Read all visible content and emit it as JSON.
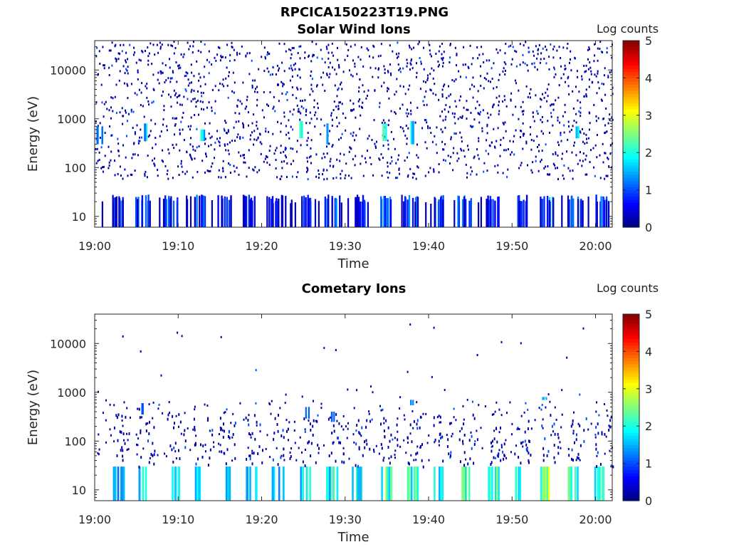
{
  "figure": {
    "title": "RPCICA150223T19.PNG"
  },
  "chart_data": [
    {
      "type": "heatmap",
      "title": "Solar Wind Ions",
      "xlabel": "Time",
      "ylabel": "Energy (eV)",
      "yscale": "log",
      "ylim": [
        6,
        40000
      ],
      "xlim": [
        "19:00",
        "20:02"
      ],
      "x_tick_labels": [
        "19:00",
        "19:10",
        "19:20",
        "19:30",
        "19:40",
        "19:50",
        "20:00"
      ],
      "y_tick_labels": [
        "10",
        "100",
        "1000",
        "10000"
      ],
      "colorbar": {
        "label": "Log counts",
        "range": [
          0,
          5
        ],
        "ticks": [
          "0",
          "1",
          "2",
          "3",
          "4",
          "5"
        ],
        "colormap": "jet"
      },
      "bursts": [
        {
          "t": 0.5,
          "emin": 300,
          "emax": 700,
          "v": 1.6
        },
        {
          "t": 5.8,
          "emin": 350,
          "emax": 800,
          "v": 1.8
        },
        {
          "t": 12.8,
          "emin": 350,
          "emax": 600,
          "v": 2.0
        },
        {
          "t": 24.6,
          "emin": 400,
          "emax": 900,
          "v": 2.1
        },
        {
          "t": 28.1,
          "emin": 300,
          "emax": 800,
          "v": 1.3
        },
        {
          "t": 34.8,
          "emin": 350,
          "emax": 800,
          "v": 2.2
        },
        {
          "t": 38.1,
          "emin": 300,
          "emax": 900,
          "v": 2.4
        },
        {
          "t": 57.9,
          "emin": 400,
          "emax": 700,
          "v": 1.8
        }
      ],
      "low_energy_bands": [
        {
          "t": 2.6,
          "v": 1.0
        },
        {
          "t": 5.6,
          "v": 1.1
        },
        {
          "t": 9.1,
          "v": 1.0
        },
        {
          "t": 12.4,
          "v": 1.1
        },
        {
          "t": 15.5,
          "v": 0.8
        },
        {
          "t": 18.5,
          "v": 0.9
        },
        {
          "t": 21.6,
          "v": 0.8
        },
        {
          "t": 25.0,
          "v": 1.0
        },
        {
          "t": 28.1,
          "v": 1.5
        },
        {
          "t": 31.5,
          "v": 0.9
        },
        {
          "t": 34.7,
          "v": 1.3
        },
        {
          "t": 37.8,
          "v": 1.2
        },
        {
          "t": 41.0,
          "v": 0.9
        },
        {
          "t": 44.2,
          "v": 1.4
        },
        {
          "t": 47.6,
          "v": 1.0
        },
        {
          "t": 50.9,
          "v": 0.8
        },
        {
          "t": 54.0,
          "v": 1.7
        },
        {
          "t": 57.4,
          "v": 1.2
        },
        {
          "t": 60.6,
          "v": 1.1
        }
      ]
    },
    {
      "type": "heatmap",
      "title": "Cometary Ions",
      "xlabel": "Time",
      "ylabel": "Energy (eV)",
      "yscale": "log",
      "ylim": [
        6,
        40000
      ],
      "xlim": [
        "19:00",
        "20:02"
      ],
      "x_tick_labels": [
        "19:00",
        "19:10",
        "19:20",
        "19:30",
        "19:40",
        "19:50",
        "20:00"
      ],
      "y_tick_labels": [
        "10",
        "100",
        "1000",
        "10000"
      ],
      "colorbar": {
        "label": "Log counts",
        "range": [
          0,
          5
        ],
        "ticks": [
          "0",
          "1",
          "2",
          "3",
          "4",
          "5"
        ],
        "colormap": "jet"
      },
      "bursts": [
        {
          "t": 2.8,
          "emin": 6,
          "emax": 30,
          "v": 1.6
        },
        {
          "t": 5.7,
          "emin": 6,
          "emax": 30,
          "v": 2.0
        },
        {
          "t": 9.3,
          "emin": 6,
          "emax": 30,
          "v": 1.8
        },
        {
          "t": 12.5,
          "emin": 6,
          "emax": 30,
          "v": 2.2
        },
        {
          "t": 15.5,
          "emin": 6,
          "emax": 30,
          "v": 1.8
        },
        {
          "t": 18.7,
          "emin": 6,
          "emax": 30,
          "v": 2.0
        },
        {
          "t": 21.9,
          "emin": 6,
          "emax": 30,
          "v": 2.1
        },
        {
          "t": 25.3,
          "emin": 6,
          "emax": 30,
          "v": 2.0
        },
        {
          "t": 28.4,
          "emin": 6,
          "emax": 30,
          "v": 2.3
        },
        {
          "t": 31.5,
          "emin": 6,
          "emax": 30,
          "v": 2.2
        },
        {
          "t": 34.8,
          "emin": 6,
          "emax": 30,
          "v": 2.7
        },
        {
          "t": 37.9,
          "emin": 6,
          "emax": 30,
          "v": 2.5
        },
        {
          "t": 41.2,
          "emin": 6,
          "emax": 30,
          "v": 2.2
        },
        {
          "t": 44.3,
          "emin": 6,
          "emax": 30,
          "v": 2.6
        },
        {
          "t": 47.7,
          "emin": 6,
          "emax": 30,
          "v": 2.8
        },
        {
          "t": 50.9,
          "emin": 6,
          "emax": 30,
          "v": 2.2
        },
        {
          "t": 54.0,
          "emin": 6,
          "emax": 30,
          "v": 2.9
        },
        {
          "t": 57.3,
          "emin": 6,
          "emax": 30,
          "v": 2.7
        },
        {
          "t": 60.5,
          "emin": 6,
          "emax": 30,
          "v": 2.6
        }
      ],
      "upper_features": [
        {
          "t": 5.8,
          "emin": 100,
          "emax": 600,
          "v": 1.0
        },
        {
          "t": 25.3,
          "emin": 80,
          "emax": 500,
          "v": 1.1
        },
        {
          "t": 28.4,
          "emin": 80,
          "emax": 400,
          "v": 1.1
        },
        {
          "t": 38.0,
          "emin": 300,
          "emax": 700,
          "v": 1.3
        },
        {
          "t": 53.8,
          "emin": 500,
          "emax": 800,
          "v": 1.5
        }
      ]
    }
  ]
}
